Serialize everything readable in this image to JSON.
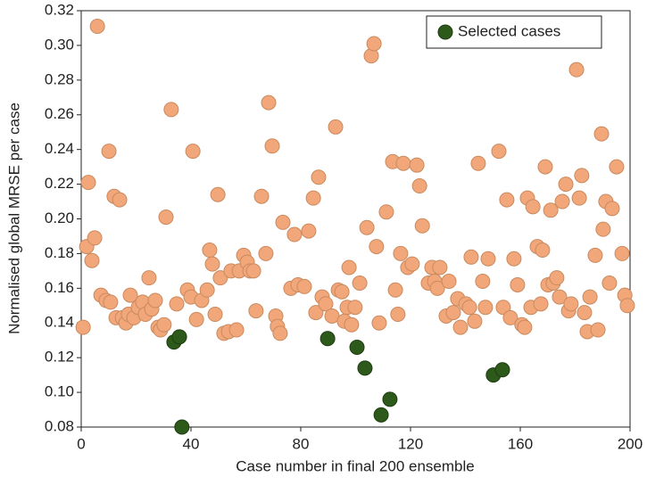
{
  "chart_data": {
    "type": "scatter",
    "xlabel": "Case number in final 200 ensemble",
    "ylabel": "Normalised global MRSE per case",
    "xlim": [
      0,
      200
    ],
    "xticks": [
      0,
      40,
      80,
      120,
      160,
      200
    ],
    "ylim": [
      0.08,
      0.32
    ],
    "yticks": [
      0.08,
      {
        "value": 0.1,
        "label": "0.10"
      },
      0.12,
      0.14,
      0.16,
      0.18,
      {
        "value": 0.2,
        "label": "0.20"
      },
      0.22,
      0.24,
      0.26,
      0.28,
      {
        "value": 0.3,
        "label": "0.30"
      },
      0.32
    ],
    "legend": "upper right",
    "series": [
      {
        "color": "#f2a77a",
        "x": [
          0.7,
          2,
          2.6,
          3.9,
          4.9,
          5.9,
          7.2,
          9.1,
          10.1,
          10.7,
          12,
          12.7,
          14,
          15,
          16.3,
          17.2,
          17.9,
          19.2,
          20.8,
          22.4,
          23.4,
          24.7,
          25.7,
          27,
          28,
          28.9,
          30.2,
          30.9,
          32.8,
          34.8,
          38.7,
          40,
          40.7,
          42,
          43.9,
          45.9,
          46.8,
          47.8,
          48.8,
          49.8,
          50.7,
          52,
          53.7,
          54.6,
          56.6,
          57.6,
          59.2,
          60.5,
          61.5,
          62.8,
          63.7,
          65.7,
          67.3,
          68.3,
          69.6,
          70.9,
          71.5,
          72.5,
          73.5,
          76.4,
          77.7,
          79,
          81.3,
          82.9,
          84.6,
          85.5,
          86.5,
          87.8,
          89.1,
          91.4,
          92.7,
          93.7,
          95,
          95.9,
          96.9,
          97.6,
          98.5,
          99.8,
          101.5,
          104.1,
          105.7,
          106.7,
          107.6,
          108.6,
          111.2,
          114.5,
          115.4,
          116.4,
          113.5,
          117.4,
          119,
          120.6,
          122.3,
          123.3,
          124.3,
          126.5,
          127.8,
          128.8,
          129.8,
          130.7,
          133,
          134,
          135.6,
          137.2,
          138.2,
          140.2,
          141.5,
          142.1,
          143.4,
          144.7,
          146.3,
          147.3,
          148.3,
          152.2,
          153.8,
          155.1,
          156.4,
          157.7,
          159,
          160.6,
          161.6,
          162.6,
          163.9,
          164.6,
          166.2,
          167.5,
          168.1,
          169.1,
          170.1,
          171.1,
          172,
          173.3,
          174.3,
          175.3,
          176.6,
          177.6,
          178.5,
          180.5,
          181.5,
          182.4,
          183.4,
          184.4,
          185.4,
          187.3,
          188.3,
          189.6,
          190.2,
          191.2,
          192.5,
          193.5,
          195.1,
          197.1,
          198.1,
          199
        ],
        "values": [
          0.1375,
          0.184,
          0.221,
          0.176,
          0.189,
          0.311,
          0.156,
          0.153,
          0.239,
          0.152,
          0.213,
          0.143,
          0.211,
          0.143,
          0.14,
          0.145,
          0.156,
          0.143,
          0.149,
          0.152,
          0.145,
          0.166,
          0.148,
          0.153,
          0.1375,
          0.136,
          0.139,
          0.201,
          0.263,
          0.151,
          0.159,
          0.155,
          0.239,
          0.142,
          0.153,
          0.159,
          0.182,
          0.174,
          0.145,
          0.214,
          0.166,
          0.134,
          0.135,
          0.17,
          0.136,
          0.17,
          0.179,
          0.175,
          0.17,
          0.17,
          0.147,
          0.213,
          0.18,
          0.267,
          0.242,
          0.144,
          0.138,
          0.134,
          0.198,
          0.16,
          0.191,
          0.162,
          0.161,
          0.193,
          0.212,
          0.146,
          0.224,
          0.155,
          0.151,
          0.144,
          0.253,
          0.159,
          0.158,
          0.141,
          0.149,
          0.172,
          0.139,
          0.149,
          0.163,
          0.195,
          0.294,
          0.301,
          0.184,
          0.14,
          0.204,
          0.159,
          0.145,
          0.18,
          0.233,
          0.232,
          0.172,
          0.174,
          0.231,
          0.219,
          0.196,
          0.163,
          0.172,
          0.164,
          0.16,
          0.172,
          0.144,
          0.164,
          0.146,
          0.154,
          0.1375,
          0.151,
          0.149,
          0.178,
          0.141,
          0.232,
          0.164,
          0.149,
          0.177,
          0.239,
          0.149,
          0.211,
          0.143,
          0.177,
          0.162,
          0.139,
          0.1375,
          0.212,
          0.149,
          0.207,
          0.184,
          0.151,
          0.182,
          0.23,
          0.162,
          0.205,
          0.163,
          0.166,
          0.155,
          0.21,
          0.22,
          0.147,
          0.151,
          0.286,
          0.212,
          0.225,
          0.146,
          0.135,
          0.155,
          0.179,
          0.136,
          0.249,
          0.194,
          0.21,
          0.163,
          0.206,
          0.23,
          0.18,
          0.156,
          0.15
        ]
      },
      {
        "name": "Selected cases",
        "color": "#2d5a1b",
        "x": [
          33.8,
          35.8,
          36.7,
          89.8,
          100.5,
          103.4,
          109.3,
          112.5,
          150.2,
          153.5
        ],
        "values": [
          0.129,
          0.132,
          0.08,
          0.131,
          0.126,
          0.114,
          0.087,
          0.096,
          0.11,
          0.113
        ]
      }
    ]
  }
}
